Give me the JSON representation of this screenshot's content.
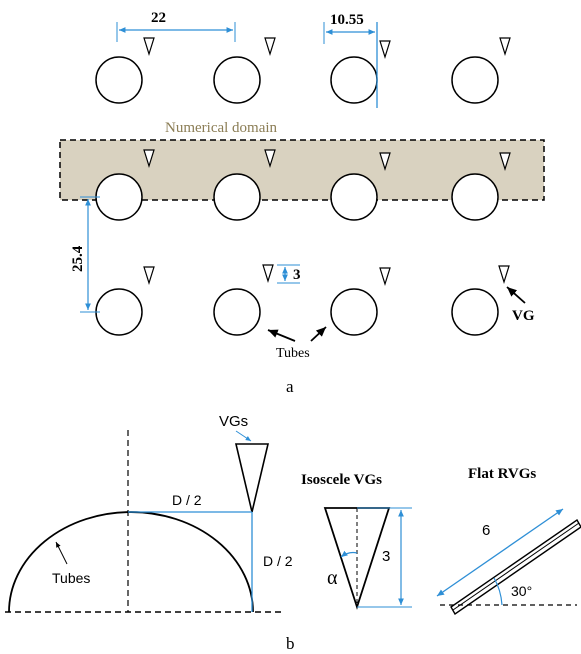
{
  "panel_a": {
    "dim_spacing": "22",
    "dim_offset": "10.55",
    "domain_label": "Numerical domain",
    "dim_pitch": "25.4",
    "dim_vg_height": "3",
    "vg_label": "VG",
    "tubes_label": "Tubes",
    "caption": "a"
  },
  "panel_b": {
    "vgs_label": "VGs",
    "half_d_top": "D / 2",
    "half_d_side": "D / 2",
    "tubes_label": "Tubes",
    "isosceles_title": "Isoscele VGs",
    "alpha": "α",
    "vg_height": "3",
    "flat_title": "Flat  RVGs",
    "flat_length": "6",
    "angle": "30°",
    "caption": "b"
  },
  "colors": {
    "dimension_blue": "#2e8fd6",
    "domain_fill": "#d9d2c0",
    "domain_text": "#8b7d55",
    "stroke": "#000000"
  }
}
